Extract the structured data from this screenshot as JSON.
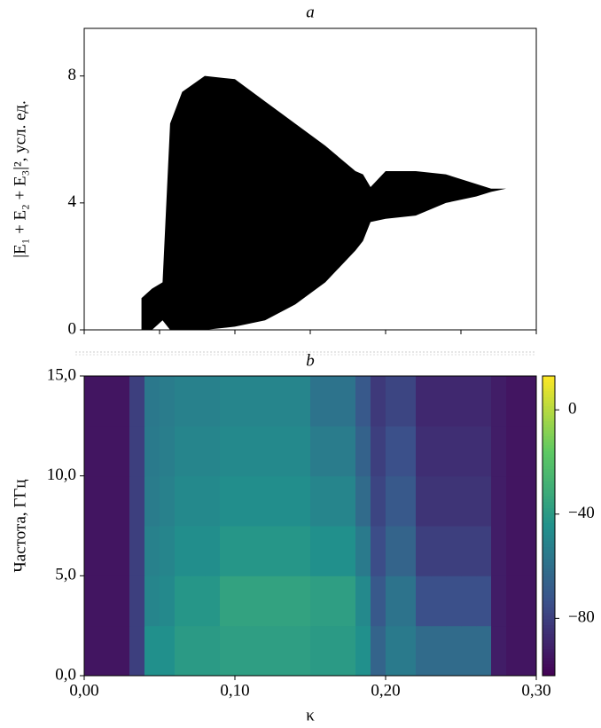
{
  "chart_data": [
    {
      "type": "range",
      "title": "a",
      "ylabel": "|E₁ + E₂ + E₃|², усл. ед.",
      "xlim": [
        0,
        0.3
      ],
      "xticks": [
        0,
        0.05,
        0.1,
        0.15,
        0.2,
        0.25,
        0.3
      ],
      "ylim": [
        0,
        9.5
      ],
      "yticks": [
        0,
        4,
        8
      ],
      "color": "#000000",
      "x": [
        0.038,
        0.045,
        0.052,
        0.057,
        0.065,
        0.08,
        0.1,
        0.12,
        0.14,
        0.16,
        0.18,
        0.185,
        0.19,
        0.2,
        0.22,
        0.24,
        0.26,
        0.27,
        0.28,
        0.3
      ],
      "upper": [
        1.0,
        1.3,
        1.5,
        6.5,
        7.5,
        8.0,
        7.9,
        7.2,
        6.5,
        5.8,
        5.0,
        4.9,
        4.5,
        5.0,
        5.0,
        4.9,
        4.6,
        4.45,
        4.45,
        4.55
      ],
      "lower": [
        0,
        0,
        0.3,
        0,
        0,
        0,
        0.1,
        0.3,
        0.8,
        1.5,
        2.5,
        2.8,
        3.4,
        3.5,
        3.6,
        4.0,
        4.2,
        4.35,
        4.45,
        4.55
      ]
    },
    {
      "type": "heatmap",
      "title": "b",
      "xlabel": "κ",
      "ylabel": "Частота, ГГц",
      "xlim": [
        0,
        0.3
      ],
      "xticks": [
        {
          "value": 0,
          "label": "0,00"
        },
        {
          "value": 0.1,
          "label": "0,10"
        },
        {
          "value": 0.2,
          "label": "0,20"
        },
        {
          "value": 0.3,
          "label": "0,30"
        }
      ],
      "ylim": [
        0,
        15
      ],
      "yticks": [
        {
          "value": 0,
          "label": "0,0"
        },
        {
          "value": 5,
          "label": "5,0"
        },
        {
          "value": 10,
          "label": "10,0"
        },
        {
          "value": 15,
          "label": "15,0"
        }
      ],
      "zlim": [
        -102,
        13
      ],
      "zticks": [
        0,
        {
          "value": -40,
          "label": "−40"
        },
        {
          "value": -80,
          "label": "−80"
        }
      ],
      "colormap": [
        "#440154",
        "#3b528b",
        "#21918c",
        "#5ec962",
        "#fde725"
      ],
      "xbins": [
        0,
        0.01,
        0.02,
        0.03,
        0.04,
        0.05,
        0.06,
        0.07,
        0.08,
        0.09,
        0.1,
        0.11,
        0.12,
        0.13,
        0.14,
        0.15,
        0.16,
        0.17,
        0.18,
        0.19,
        0.2,
        0.21,
        0.22,
        0.23,
        0.24,
        0.25,
        0.26,
        0.27,
        0.28,
        0.29,
        0.3
      ],
      "ybins": [
        0,
        2.5,
        5,
        7.5,
        10,
        12.5,
        15
      ],
      "z": [
        [
          -95,
          -95,
          -95,
          -80,
          -45,
          -45,
          -40,
          -40,
          -40,
          -38,
          -38,
          -38,
          -38,
          -38,
          -38,
          -40,
          -40,
          -40,
          -45,
          -65,
          -55,
          -55,
          -62,
          -62,
          -62,
          -62,
          -62,
          -92,
          -95,
          -95
        ],
        [
          -95,
          -95,
          -95,
          -80,
          -50,
          -48,
          -42,
          -42,
          -42,
          -36,
          -36,
          -36,
          -36,
          -36,
          -36,
          -38,
          -38,
          -38,
          -48,
          -70,
          -58,
          -58,
          -74,
          -74,
          -74,
          -74,
          -74,
          -92,
          -95,
          -95
        ],
        [
          -95,
          -95,
          -95,
          -80,
          -52,
          -50,
          -46,
          -46,
          -46,
          -42,
          -42,
          -42,
          -42,
          -42,
          -42,
          -45,
          -45,
          -45,
          -55,
          -75,
          -65,
          -65,
          -80,
          -80,
          -80,
          -80,
          -80,
          -92,
          -95,
          -95
        ],
        [
          -95,
          -95,
          -95,
          -80,
          -54,
          -52,
          -48,
          -48,
          -48,
          -46,
          -46,
          -46,
          -46,
          -46,
          -46,
          -50,
          -50,
          -50,
          -62,
          -78,
          -70,
          -70,
          -84,
          -84,
          -84,
          -84,
          -84,
          -92,
          -95,
          -95
        ],
        [
          -95,
          -95,
          -95,
          -80,
          -55,
          -53,
          -50,
          -50,
          -50,
          -48,
          -48,
          -48,
          -48,
          -48,
          -48,
          -54,
          -54,
          -54,
          -66,
          -80,
          -74,
          -74,
          -86,
          -86,
          -86,
          -86,
          -86,
          -92,
          -95,
          -95
        ],
        [
          -95,
          -95,
          -95,
          -80,
          -56,
          -54,
          -52,
          -52,
          -52,
          -50,
          -50,
          -50,
          -50,
          -50,
          -50,
          -58,
          -58,
          -58,
          -70,
          -82,
          -78,
          -78,
          -88,
          -88,
          -88,
          -88,
          -88,
          -92,
          -95,
          -95
        ]
      ]
    }
  ]
}
